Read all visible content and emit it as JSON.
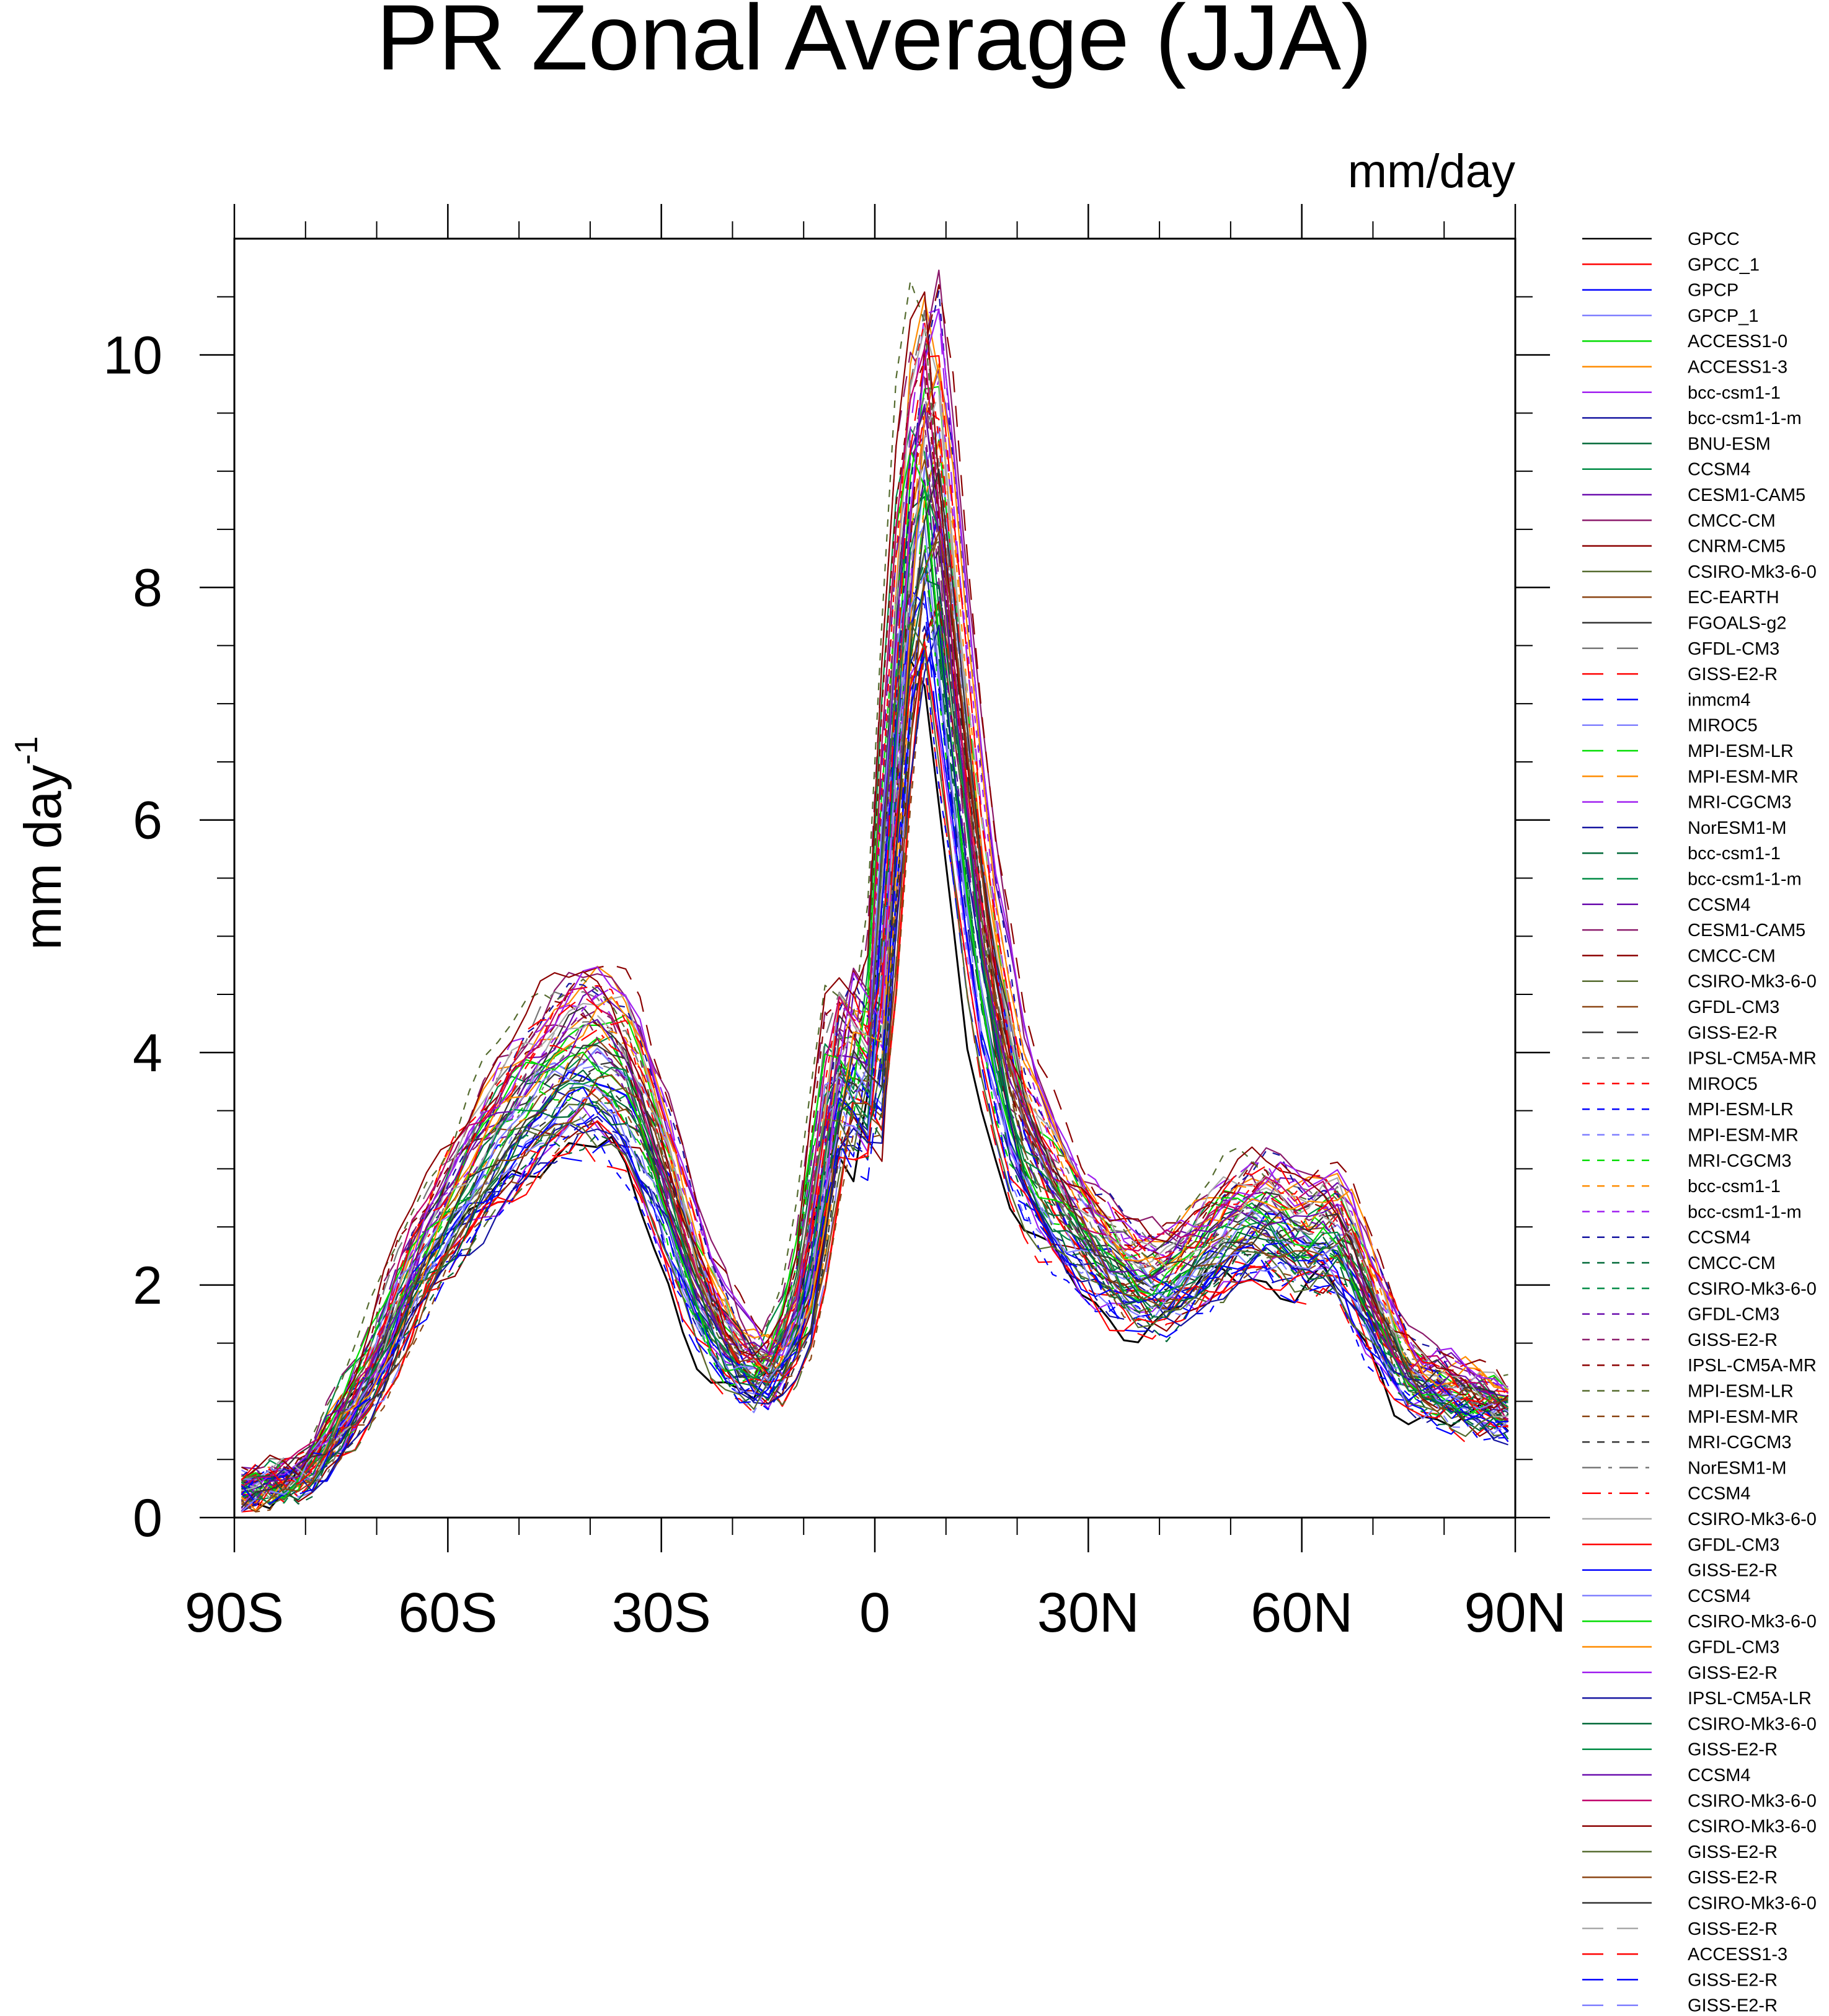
{
  "chart_data": {
    "type": "line",
    "title": "PR Zonal Average (JJA)",
    "units_label": "mm/day",
    "ylabel": "mm day",
    "ylabel_superscript": "-1",
    "xlabel": "",
    "xlim": [
      -90,
      90
    ],
    "ylim": [
      0,
      11
    ],
    "x_ticks": [
      {
        "value": -90,
        "label": "90S"
      },
      {
        "value": -60,
        "label": "60S"
      },
      {
        "value": -30,
        "label": "30S"
      },
      {
        "value": 0,
        "label": "0"
      },
      {
        "value": 30,
        "label": "30N"
      },
      {
        "value": 60,
        "label": "60N"
      },
      {
        "value": 90,
        "label": "90N"
      }
    ],
    "y_ticks": [
      {
        "value": 0,
        "label": "0"
      },
      {
        "value": 2,
        "label": "2"
      },
      {
        "value": 4,
        "label": "4"
      },
      {
        "value": 6,
        "label": "6"
      },
      {
        "value": 8,
        "label": "8"
      },
      {
        "value": 10,
        "label": "10"
      }
    ],
    "ensemble_profile": {
      "x": [
        -90,
        -85,
        -80,
        -75,
        -70,
        -65,
        -60,
        -55,
        -50,
        -45,
        -40,
        -35,
        -30,
        -25,
        -20,
        -15,
        -10,
        -5,
        0,
        2,
        5,
        8,
        10,
        15,
        20,
        25,
        30,
        35,
        40,
        45,
        50,
        55,
        60,
        65,
        70,
        75,
        80,
        85,
        90
      ],
      "values": [
        0.2,
        0.3,
        0.35,
        0.8,
        1.3,
        2.1,
        2.6,
        3.1,
        3.5,
        3.8,
        4.0,
        3.8,
        3.0,
        2.0,
        1.4,
        1.2,
        1.8,
        4.0,
        3.6,
        6.0,
        8.5,
        9.2,
        7.8,
        5.0,
        3.4,
        2.8,
        2.4,
        2.1,
        2.0,
        2.2,
        2.5,
        2.6,
        2.4,
        2.5,
        1.8,
        1.2,
        1.1,
        1.0,
        0.9
      ]
    },
    "series": [
      {
        "name": "GPCC",
        "color": "#000000",
        "dash": "solid"
      },
      {
        "name": "GPCC_1",
        "color": "#ff0000",
        "dash": "solid"
      },
      {
        "name": "GPCP",
        "color": "#0000ff",
        "dash": "solid"
      },
      {
        "name": "GPCP_1",
        "color": "#8080ff",
        "dash": "solid"
      },
      {
        "name": "ACCESS1-0",
        "color": "#00dd00",
        "dash": "solid"
      },
      {
        "name": "ACCESS1-3",
        "color": "#ff8c00",
        "dash": "solid"
      },
      {
        "name": "bcc-csm1-1",
        "color": "#a020f0",
        "dash": "solid"
      },
      {
        "name": "bcc-csm1-1-m",
        "color": "#1414a0",
        "dash": "solid"
      },
      {
        "name": "BNU-ESM",
        "color": "#006837",
        "dash": "solid"
      },
      {
        "name": "CCSM4",
        "color": "#008b45",
        "dash": "solid"
      },
      {
        "name": "CESM1-CAM5",
        "color": "#6a0dad",
        "dash": "solid"
      },
      {
        "name": "CMCC-CM",
        "color": "#8b1a6b",
        "dash": "solid"
      },
      {
        "name": "CNRM-CM5",
        "color": "#8b0000",
        "dash": "solid"
      },
      {
        "name": "CSIRO-Mk3-6-0",
        "color": "#556b2f",
        "dash": "solid"
      },
      {
        "name": "EC-EARTH",
        "color": "#8b4513",
        "dash": "solid"
      },
      {
        "name": "FGOALS-g2",
        "color": "#333333",
        "dash": "solid"
      },
      {
        "name": "GFDL-CM3",
        "color": "#777777",
        "dash": "longdash"
      },
      {
        "name": "GISS-E2-R",
        "color": "#ff0000",
        "dash": "longdash"
      },
      {
        "name": "inmcm4",
        "color": "#0000ff",
        "dash": "longdash"
      },
      {
        "name": "MIROC5",
        "color": "#8080ff",
        "dash": "longdash"
      },
      {
        "name": "MPI-ESM-LR",
        "color": "#00dd00",
        "dash": "longdash"
      },
      {
        "name": "MPI-ESM-MR",
        "color": "#ff8c00",
        "dash": "longdash"
      },
      {
        "name": "MRI-CGCM3",
        "color": "#a020f0",
        "dash": "longdash"
      },
      {
        "name": "NorESM1-M",
        "color": "#1414a0",
        "dash": "longdash"
      },
      {
        "name": "bcc-csm1-1",
        "color": "#006837",
        "dash": "longdash"
      },
      {
        "name": "bcc-csm1-1-m",
        "color": "#008b45",
        "dash": "longdash"
      },
      {
        "name": "CCSM4",
        "color": "#6a0dad",
        "dash": "longdash"
      },
      {
        "name": "CESM1-CAM5",
        "color": "#8b1a6b",
        "dash": "longdash"
      },
      {
        "name": "CMCC-CM",
        "color": "#8b0000",
        "dash": "longdash"
      },
      {
        "name": "CSIRO-Mk3-6-0",
        "color": "#556b2f",
        "dash": "longdash"
      },
      {
        "name": "GFDL-CM3",
        "color": "#8b4513",
        "dash": "longdash"
      },
      {
        "name": "GISS-E2-R",
        "color": "#333333",
        "dash": "longdash"
      },
      {
        "name": "IPSL-CM5A-MR",
        "color": "#777777",
        "dash": "shortdash"
      },
      {
        "name": "MIROC5",
        "color": "#ff0000",
        "dash": "shortdash"
      },
      {
        "name": "MPI-ESM-LR",
        "color": "#0000ff",
        "dash": "shortdash"
      },
      {
        "name": "MPI-ESM-MR",
        "color": "#8080ff",
        "dash": "shortdash"
      },
      {
        "name": "MRI-CGCM3",
        "color": "#00dd00",
        "dash": "shortdash"
      },
      {
        "name": "bcc-csm1-1",
        "color": "#ff8c00",
        "dash": "shortdash"
      },
      {
        "name": "bcc-csm1-1-m",
        "color": "#a020f0",
        "dash": "shortdash"
      },
      {
        "name": "CCSM4",
        "color": "#1414a0",
        "dash": "shortdash"
      },
      {
        "name": "CMCC-CM",
        "color": "#006837",
        "dash": "shortdash"
      },
      {
        "name": "CSIRO-Mk3-6-0",
        "color": "#008b45",
        "dash": "shortdash"
      },
      {
        "name": "GFDL-CM3",
        "color": "#6a0dad",
        "dash": "shortdash"
      },
      {
        "name": "GISS-E2-R",
        "color": "#8b1a6b",
        "dash": "shortdash"
      },
      {
        "name": "IPSL-CM5A-MR",
        "color": "#8b0000",
        "dash": "shortdash"
      },
      {
        "name": "MPI-ESM-LR",
        "color": "#556b2f",
        "dash": "shortdash"
      },
      {
        "name": "MPI-ESM-MR",
        "color": "#8b4513",
        "dash": "shortdash"
      },
      {
        "name": "MRI-CGCM3",
        "color": "#333333",
        "dash": "shortdash"
      },
      {
        "name": "NorESM1-M",
        "color": "#777777",
        "dash": "dashdot"
      },
      {
        "name": "CCSM4",
        "color": "#ff0000",
        "dash": "dashdot"
      },
      {
        "name": "CSIRO-Mk3-6-0",
        "color": "#aaaaaa",
        "dash": "solid"
      },
      {
        "name": "GFDL-CM3",
        "color": "#ff0000",
        "dash": "solid"
      },
      {
        "name": "GISS-E2-R",
        "color": "#0000ff",
        "dash": "solid"
      },
      {
        "name": "CCSM4",
        "color": "#8080ff",
        "dash": "solid"
      },
      {
        "name": "CSIRO-Mk3-6-0",
        "color": "#00dd00",
        "dash": "solid"
      },
      {
        "name": "GFDL-CM3",
        "color": "#ff8c00",
        "dash": "solid"
      },
      {
        "name": "GISS-E2-R",
        "color": "#a020f0",
        "dash": "solid"
      },
      {
        "name": "IPSL-CM5A-LR",
        "color": "#1414a0",
        "dash": "solid"
      },
      {
        "name": "CSIRO-Mk3-6-0",
        "color": "#006837",
        "dash": "solid"
      },
      {
        "name": "GISS-E2-R",
        "color": "#008b45",
        "dash": "solid"
      },
      {
        "name": "CCSM4",
        "color": "#6a0dad",
        "dash": "solid"
      },
      {
        "name": "CSIRO-Mk3-6-0",
        "color": "#c0006a",
        "dash": "solid"
      },
      {
        "name": "CSIRO-Mk3-6-0",
        "color": "#8b0000",
        "dash": "solid"
      },
      {
        "name": "GISS-E2-R",
        "color": "#556b2f",
        "dash": "solid"
      },
      {
        "name": "GISS-E2-R",
        "color": "#8b4513",
        "dash": "solid"
      },
      {
        "name": "CSIRO-Mk3-6-0",
        "color": "#333333",
        "dash": "solid"
      },
      {
        "name": "GISS-E2-R",
        "color": "#aaaaaa",
        "dash": "longdash"
      },
      {
        "name": "ACCESS1-3",
        "color": "#ff0000",
        "dash": "longdash"
      },
      {
        "name": "GISS-E2-R",
        "color": "#0000ff",
        "dash": "longdash"
      },
      {
        "name": "GISS-E2-R",
        "color": "#8080ff",
        "dash": "longdash"
      }
    ]
  }
}
